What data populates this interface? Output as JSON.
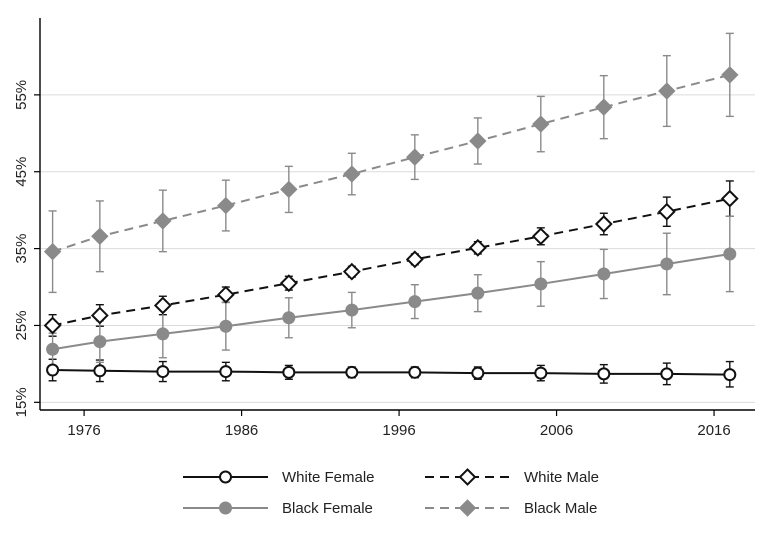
{
  "chart_data": {
    "type": "line",
    "title": "",
    "xlabel": "",
    "ylabel": "",
    "xlim": [
      1973.2,
      2018.6
    ],
    "ylim": [
      14.0,
      65.0
    ],
    "x_ticks": [
      1976,
      1986,
      1996,
      2006,
      2016
    ],
    "x_tick_labels": [
      "1976",
      "1986",
      "1996",
      "2006",
      "2016"
    ],
    "y_ticks": [
      15,
      25,
      35,
      45,
      55
    ],
    "y_tick_labels": [
      "15%",
      "25%",
      "35%",
      "45%",
      "55%"
    ],
    "grid": "horizontal",
    "legend_position": "bottom",
    "x": [
      1974,
      1977,
      1981,
      1985,
      1989,
      1993,
      1997,
      2001,
      2005,
      2009,
      2013,
      2017
    ],
    "series": [
      {
        "name": "White Female",
        "line_style": "solid",
        "color": "#111111",
        "marker": "circle-hollow",
        "values": [
          19.2,
          19.1,
          19.0,
          19.0,
          18.9,
          18.9,
          18.9,
          18.8,
          18.8,
          18.7,
          18.7,
          18.6
        ],
        "ci_low": [
          17.8,
          17.7,
          17.7,
          17.8,
          18.0,
          18.2,
          18.2,
          18.0,
          17.8,
          17.5,
          17.3,
          17.0
        ],
        "ci_high": [
          20.6,
          20.5,
          20.3,
          20.2,
          19.8,
          19.6,
          19.6,
          19.6,
          19.8,
          19.9,
          20.1,
          20.3
        ]
      },
      {
        "name": "White Male",
        "line_style": "dashed",
        "color": "#111111",
        "marker": "diamond-hollow",
        "values": [
          25.0,
          26.3,
          27.6,
          29.0,
          30.5,
          32.0,
          33.6,
          35.1,
          36.6,
          38.2,
          39.8,
          41.5
        ],
        "ci_low": [
          23.6,
          24.9,
          26.4,
          28.0,
          29.6,
          31.3,
          32.9,
          34.3,
          35.5,
          36.8,
          37.9,
          39.2
        ],
        "ci_high": [
          26.4,
          27.7,
          28.8,
          30.0,
          31.4,
          32.7,
          34.3,
          35.9,
          37.7,
          39.6,
          41.7,
          43.8
        ]
      },
      {
        "name": "Black Female",
        "line_style": "solid",
        "color": "#8a8a8a",
        "marker": "circle-filled",
        "values": [
          21.9,
          22.9,
          23.9,
          24.9,
          26.0,
          27.0,
          28.1,
          29.2,
          30.4,
          31.7,
          33.0,
          34.3
        ],
        "ci_low": [
          19.8,
          20.2,
          20.8,
          21.8,
          23.4,
          24.7,
          25.9,
          26.8,
          27.5,
          28.5,
          29.0,
          29.4
        ],
        "ci_high": [
          24.0,
          25.6,
          27.0,
          28.0,
          28.6,
          29.3,
          30.3,
          31.6,
          33.3,
          34.9,
          37.0,
          39.2
        ]
      },
      {
        "name": "Black Male",
        "line_style": "dashed",
        "color": "#8a8a8a",
        "marker": "diamond-filled",
        "values": [
          34.6,
          36.6,
          38.6,
          40.6,
          42.7,
          44.7,
          46.9,
          49.0,
          51.2,
          53.4,
          55.5,
          57.6
        ],
        "ci_low": [
          29.3,
          32.0,
          34.6,
          37.3,
          39.7,
          42.0,
          44.0,
          46.0,
          47.6,
          49.3,
          50.9,
          52.2
        ],
        "ci_high": [
          39.9,
          41.2,
          42.6,
          43.9,
          45.7,
          47.4,
          49.8,
          52.0,
          54.8,
          57.5,
          60.1,
          63.0
        ]
      }
    ]
  }
}
